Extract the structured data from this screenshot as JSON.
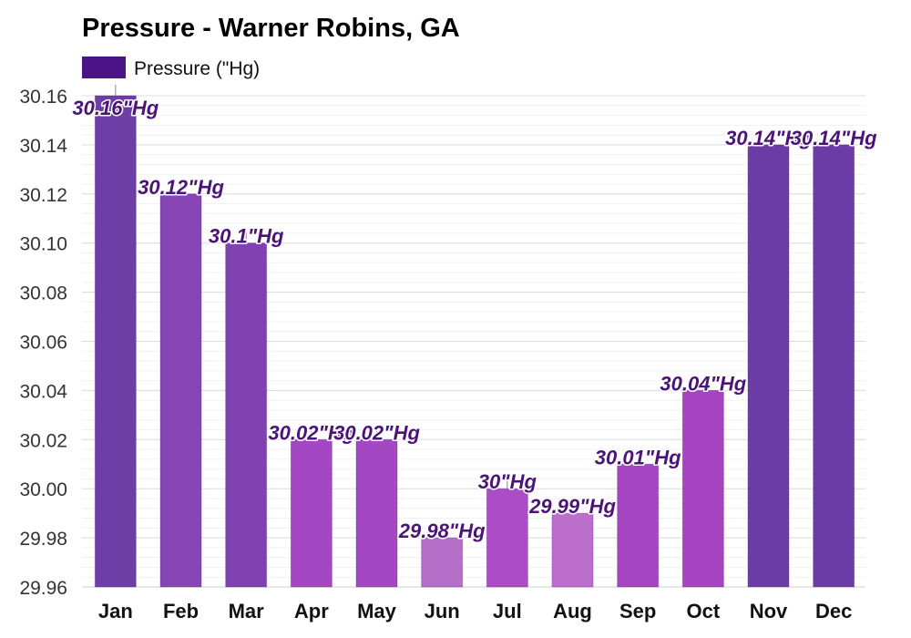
{
  "chart_data": {
    "type": "bar",
    "title": "Pressure - Warner Robins, GA",
    "xlabel": "",
    "ylabel": "",
    "ylim": [
      29.96,
      30.16
    ],
    "yticks": [
      29.96,
      29.98,
      30.0,
      30.02,
      30.04,
      30.06,
      30.08,
      30.1,
      30.12,
      30.14,
      30.16
    ],
    "ytick_labels": [
      "29.96",
      "29.98",
      "30.00",
      "30.02",
      "30.04",
      "30.06",
      "30.08",
      "30.10",
      "30.12",
      "30.14",
      "30.16"
    ],
    "grid": true,
    "legend": {
      "position": "top-left",
      "entries": [
        {
          "label": "Pressure (\"Hg)",
          "color": "#4a1486"
        }
      ]
    },
    "categories": [
      "Jan",
      "Feb",
      "Mar",
      "Apr",
      "May",
      "Jun",
      "Jul",
      "Aug",
      "Sep",
      "Oct",
      "Nov",
      "Dec"
    ],
    "series": [
      {
        "name": "Pressure (\"Hg)",
        "values": [
          30.16,
          30.12,
          30.1,
          30.02,
          30.02,
          29.98,
          30.0,
          29.99,
          30.01,
          30.04,
          30.14,
          30.14
        ],
        "data_labels": [
          "30.16\"Hg",
          "30.12\"Hg",
          "30.1\"Hg",
          "30.02\"Hg",
          "30.02\"Hg",
          "29.98\"Hg",
          "30\"Hg",
          "29.99\"Hg",
          "30.01\"Hg",
          "30.04\"Hg",
          "30.14\"Hg",
          "30.14\"Hg"
        ],
        "bar_colors": [
          "#6d3ea6",
          "#8644b4",
          "#8041b1",
          "#a347c3",
          "#a347c3",
          "#b56fc8",
          "#ac4cc6",
          "#bb6fcb",
          "#a545c2",
          "#a543c0",
          "#6b3ca5",
          "#6b3ca5"
        ],
        "label_color": "#4b1477"
      }
    ]
  }
}
